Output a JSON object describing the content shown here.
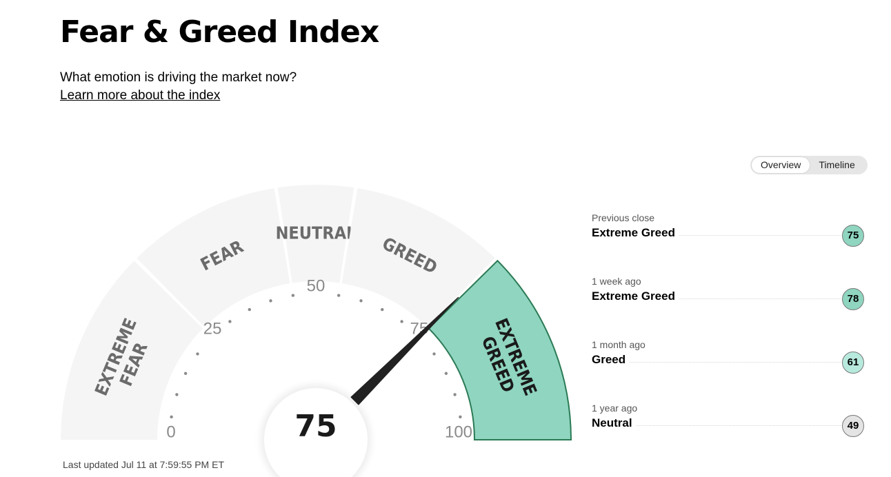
{
  "header": {
    "title": "Fear & Greed Index",
    "subtitle": "What emotion is driving the market now?",
    "learn_link": "Learn more about the index"
  },
  "view_toggle": {
    "overview_label": "Overview",
    "timeline_label": "Timeline",
    "active": "Overview"
  },
  "gauge": {
    "value": 75,
    "value_label": "75",
    "scale_labels": [
      {
        "value": 0,
        "label": "0"
      },
      {
        "value": 25,
        "label": "25"
      },
      {
        "value": 50,
        "label": "50"
      },
      {
        "value": 75,
        "label": "75"
      },
      {
        "value": 100,
        "label": "100"
      }
    ],
    "segments": [
      {
        "name": "extreme-fear",
        "lines": [
          "EXTREME",
          "FEAR"
        ],
        "range": [
          0,
          25
        ]
      },
      {
        "name": "fear",
        "lines": [
          "FEAR"
        ],
        "range": [
          25,
          45
        ]
      },
      {
        "name": "neutral",
        "lines": [
          "NEUTRAL"
        ],
        "range": [
          45,
          55
        ]
      },
      {
        "name": "greed",
        "lines": [
          "GREED"
        ],
        "range": [
          55,
          75
        ]
      },
      {
        "name": "extreme-greed",
        "lines": [
          "EXTREME",
          "GREED"
        ],
        "range": [
          75,
          100
        ]
      }
    ],
    "active_segment": "extreme-greed",
    "colors": {
      "segment": "#f5f5f5",
      "active_fill": "#8fd5c0",
      "active_border": "#2b7a55",
      "label": "#6b6b6b",
      "active_label": "#1a1a1a",
      "needle": "#222222"
    }
  },
  "last_updated": "Last updated Jul 11 at 7:59:55 PM ET",
  "history": [
    {
      "period": "Previous close",
      "rating": "Extreme Greed",
      "score": "75",
      "color": "#8fd5c0"
    },
    {
      "period": "1 week ago",
      "rating": "Extreme Greed",
      "score": "78",
      "color": "#8fd5c0"
    },
    {
      "period": "1 month ago",
      "rating": "Greed",
      "score": "61",
      "color": "#b7eadd"
    },
    {
      "period": "1 year ago",
      "rating": "Neutral",
      "score": "49",
      "color": "#e4e4e4"
    }
  ]
}
